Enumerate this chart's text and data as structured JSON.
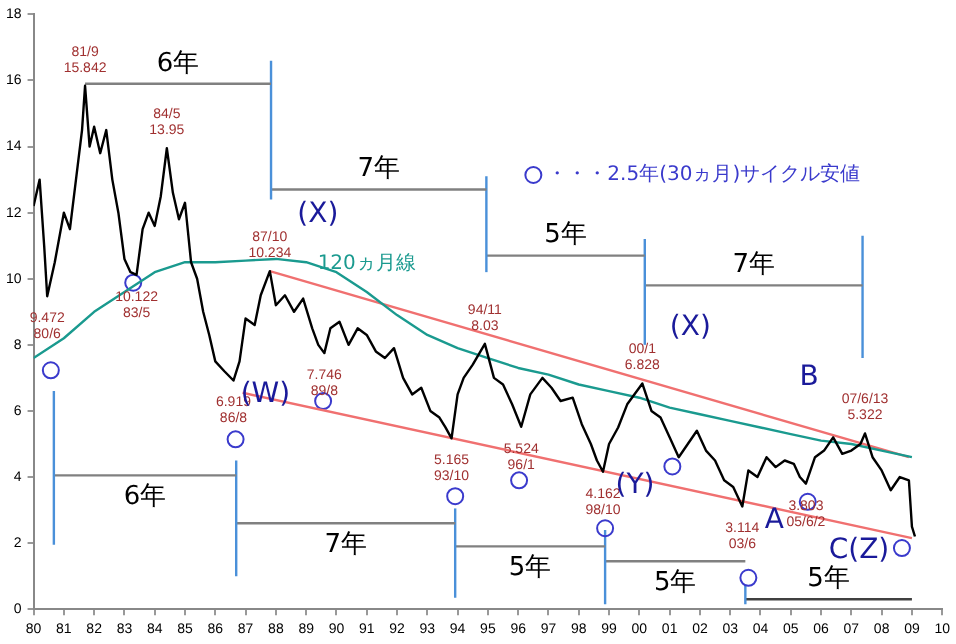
{
  "chart_data": {
    "type": "line",
    "xlim": [
      1980,
      2010
    ],
    "ylim": [
      0,
      18
    ],
    "yticks": [
      0,
      2,
      4,
      6,
      8,
      10,
      12,
      14,
      16,
      18
    ],
    "xticks": [
      {
        "value": 1980,
        "label": "80"
      },
      {
        "value": 1981,
        "label": "81"
      },
      {
        "value": 1982,
        "label": "82"
      },
      {
        "value": 1983,
        "label": "83"
      },
      {
        "value": 1984,
        "label": "84"
      },
      {
        "value": 1985,
        "label": "85"
      },
      {
        "value": 1986,
        "label": "86"
      },
      {
        "value": 1987,
        "label": "87"
      },
      {
        "value": 1988,
        "label": "88"
      },
      {
        "value": 1989,
        "label": "89"
      },
      {
        "value": 1990,
        "label": "90"
      },
      {
        "value": 1991,
        "label": "91"
      },
      {
        "value": 1992,
        "label": "92"
      },
      {
        "value": 1993,
        "label": "93"
      },
      {
        "value": 1994,
        "label": "94"
      },
      {
        "value": 1995,
        "label": "95"
      },
      {
        "value": 1996,
        "label": "96"
      },
      {
        "value": 1997,
        "label": "97"
      },
      {
        "value": 1998,
        "label": "98"
      },
      {
        "value": 1999,
        "label": "99"
      },
      {
        "value": 2000,
        "label": "00"
      },
      {
        "value": 2001,
        "label": "01"
      },
      {
        "value": 2002,
        "label": "02"
      },
      {
        "value": 2003,
        "label": "03"
      },
      {
        "value": 2004,
        "label": "04"
      },
      {
        "value": 2005,
        "label": "05"
      },
      {
        "value": 2006,
        "label": "06"
      },
      {
        "value": 2007,
        "label": "07"
      },
      {
        "value": 2008,
        "label": "08"
      },
      {
        "value": 2009,
        "label": "09"
      },
      {
        "value": 2010,
        "label": "10"
      }
    ],
    "grid": false,
    "legend": "top right",
    "line_style": "solid",
    "marker": "none",
    "series": [
      {
        "color": "#000000",
        "x": [
          1980.0,
          1980.2,
          1980.35,
          1980.45,
          1980.7,
          1981.0,
          1981.2,
          1981.4,
          1981.6,
          1981.7,
          1981.85,
          1982.0,
          1982.2,
          1982.4,
          1982.6,
          1982.8,
          1983.0,
          1983.2,
          1983.4,
          1983.6,
          1983.8,
          1984.0,
          1984.2,
          1984.4,
          1984.6,
          1984.8,
          1985.0,
          1985.2,
          1985.4,
          1985.6,
          1985.8,
          1986.0,
          1986.3,
          1986.6,
          1986.8,
          1987.0,
          1987.3,
          1987.5,
          1987.8,
          1988.0,
          1988.3,
          1988.6,
          1988.9,
          1989.2,
          1989.4,
          1989.6,
          1989.8,
          1990.1,
          1990.4,
          1990.7,
          1991.0,
          1991.3,
          1991.6,
          1991.9,
          1992.2,
          1992.5,
          1992.8,
          1993.1,
          1993.4,
          1993.6,
          1993.8,
          1994.0,
          1994.2,
          1994.5,
          1994.9,
          1995.2,
          1995.5,
          1995.8,
          1996.1,
          1996.4,
          1996.8,
          1997.1,
          1997.4,
          1997.8,
          1998.1,
          1998.4,
          1998.6,
          1998.8,
          1999.0,
          1999.3,
          1999.6,
          2000.1,
          2000.4,
          2000.7,
          2001.0,
          2001.3,
          2001.6,
          2001.9,
          2002.2,
          2002.5,
          2002.8,
          2003.1,
          2003.4,
          2003.6,
          2003.9,
          2004.2,
          2004.5,
          2004.8,
          2005.1,
          2005.3,
          2005.5,
          2005.8,
          2006.1,
          2006.4,
          2006.7,
          2007.0,
          2007.3,
          2007.45,
          2007.7,
          2008.0,
          2008.3,
          2008.6,
          2008.9,
          2009.0,
          2009.1
        ],
        "values": [
          12.2,
          13.0,
          11.0,
          9.47,
          10.5,
          12.0,
          11.5,
          13.0,
          14.5,
          15.84,
          14.0,
          14.6,
          13.8,
          14.5,
          13.0,
          12.0,
          10.6,
          10.2,
          10.12,
          11.5,
          12.0,
          11.6,
          12.5,
          13.95,
          12.6,
          11.8,
          12.3,
          10.5,
          10.0,
          9.0,
          8.3,
          7.5,
          7.2,
          6.92,
          7.5,
          8.8,
          8.6,
          9.5,
          10.23,
          9.2,
          9.5,
          9.0,
          9.4,
          8.5,
          8.0,
          7.75,
          8.5,
          8.7,
          8.0,
          8.5,
          8.3,
          7.8,
          7.6,
          7.9,
          7.0,
          6.5,
          6.7,
          6.0,
          5.8,
          5.5,
          5.17,
          6.5,
          7.0,
          7.4,
          8.03,
          7.0,
          6.8,
          6.2,
          5.52,
          6.5,
          7.0,
          6.7,
          6.3,
          6.4,
          5.6,
          5.0,
          4.5,
          4.16,
          5.0,
          5.5,
          6.2,
          6.83,
          6.0,
          5.8,
          5.2,
          4.6,
          5.0,
          5.4,
          4.8,
          4.5,
          3.9,
          3.7,
          3.11,
          4.2,
          4.0,
          4.6,
          4.3,
          4.5,
          4.4,
          4.0,
          3.8,
          4.6,
          4.8,
          5.2,
          4.7,
          4.8,
          5.0,
          5.32,
          4.6,
          4.2,
          3.6,
          4.0,
          3.9,
          2.5,
          2.2
        ]
      },
      {
        "color": "#1a9a8f",
        "x": [
          1980,
          1981,
          1982,
          1983,
          1984,
          1985,
          1986,
          1987,
          1988,
          1989,
          1990,
          1991,
          1992,
          1993,
          1994,
          1995,
          1996,
          1997,
          1998,
          1999,
          2000,
          2001,
          2002,
          2003,
          2004,
          2005,
          2006,
          2007,
          2008,
          2009
        ],
        "values": [
          7.6,
          8.2,
          9.0,
          9.6,
          10.2,
          10.5,
          10.5,
          10.55,
          10.6,
          10.5,
          10.2,
          9.6,
          8.9,
          8.3,
          7.9,
          7.6,
          7.3,
          7.1,
          6.8,
          6.6,
          6.4,
          6.1,
          5.9,
          5.7,
          5.5,
          5.3,
          5.1,
          5.0,
          4.8,
          4.6
        ]
      },
      {
        "color": "#f07070",
        "x": [
          1987.8,
          2008.9
        ],
        "values": [
          10.23,
          4.6
        ]
      },
      {
        "color": "#f07070",
        "x": [
          1986.9,
          2009.0
        ],
        "values": [
          6.55,
          2.15
        ]
      },
      {
        "type": "scatter",
        "name": "・・・2.5年(30ヵ月)サイクル安値",
        "color": "#3a3acc",
        "marker": "circle",
        "x": [
          1980.57,
          1983.29,
          1986.67,
          1989.56,
          1993.92,
          1996.03,
          1998.87,
          2001.09,
          2003.6,
          2005.56,
          2008.67
        ],
        "values": [
          7.23,
          9.88,
          5.14,
          6.3,
          3.42,
          3.9,
          2.45,
          4.32,
          0.95,
          3.25,
          1.85
        ]
      },
      {
        "color": "#808080",
        "x": [
          1981.7,
          1987.84
        ],
        "values": [
          15.9,
          15.9
        ]
      },
      {
        "color": "#4a90d9",
        "x": [
          1987.84,
          1987.84
        ],
        "values": [
          12.4,
          16.6
        ]
      },
      {
        "color": "#808080",
        "x": [
          1987.84,
          1994.95
        ],
        "values": [
          12.7,
          12.7
        ]
      },
      {
        "color": "#4a90d9",
        "x": [
          1994.95,
          1994.95
        ],
        "values": [
          10.2,
          13.1
        ]
      },
      {
        "color": "#808080",
        "x": [
          1994.95,
          2000.18
        ],
        "values": [
          10.7,
          10.7
        ]
      },
      {
        "color": "#4a90d9",
        "x": [
          2000.18,
          2000.18
        ],
        "values": [
          8.0,
          11.2
        ]
      },
      {
        "color": "#808080",
        "x": [
          2000.18,
          2007.37
        ],
        "values": [
          9.8,
          9.8
        ]
      },
      {
        "color": "#4a90d9",
        "x": [
          2007.37,
          2007.37
        ],
        "values": [
          7.6,
          11.3
        ]
      },
      {
        "color": "#4a90d9",
        "x": [
          1980.67,
          1980.67
        ],
        "values": [
          1.95,
          6.6
        ]
      },
      {
        "color": "#808080",
        "x": [
          1980.67,
          1986.69
        ],
        "values": [
          4.05,
          4.05
        ]
      },
      {
        "color": "#4a90d9",
        "x": [
          1986.69,
          1986.69
        ],
        "values": [
          1.0,
          4.5
        ]
      },
      {
        "color": "#808080",
        "x": [
          1986.69,
          1993.92
        ],
        "values": [
          2.6,
          2.6
        ]
      },
      {
        "color": "#4a90d9",
        "x": [
          1993.92,
          1993.92
        ],
        "values": [
          0.35,
          3.05
        ]
      },
      {
        "color": "#808080",
        "x": [
          1993.92,
          1998.87
        ],
        "values": [
          1.9,
          1.9
        ]
      },
      {
        "color": "#4a90d9",
        "x": [
          1998.87,
          1998.87
        ],
        "values": [
          0.15,
          2.4
        ]
      },
      {
        "color": "#808080",
        "x": [
          1998.87,
          2003.5
        ],
        "values": [
          1.45,
          1.45
        ]
      },
      {
        "color": "#4a90d9",
        "x": [
          2003.5,
          2003.5
        ],
        "values": [
          0.15,
          0.75
        ]
      },
      {
        "color": "#404040",
        "x": [
          2003.5,
          2009.0
        ],
        "values": [
          0.3,
          0.3
        ]
      }
    ],
    "annotations": [
      {
        "text": "81/9\n15.842",
        "x": 1981.7,
        "y": 15.84
      },
      {
        "text": "84/5\n13.95",
        "x": 1984.4,
        "y": 13.95
      },
      {
        "text": "9.472\n80/6",
        "x": 1980.45,
        "y": 9.47
      },
      {
        "text": "10.122\n83/5",
        "x": 1983.4,
        "y": 10.12
      },
      {
        "text": "87/10\n10.234",
        "x": 1987.8,
        "y": 10.23
      },
      {
        "text": "6.919\n86/8",
        "x": 1986.6,
        "y": 6.92
      },
      {
        "text": "7.746\n89/8",
        "x": 1989.6,
        "y": 7.75
      },
      {
        "text": "5.165\n93/10",
        "x": 1993.8,
        "y": 5.17
      },
      {
        "text": "94/11\n8.03",
        "x": 1994.9,
        "y": 8.03
      },
      {
        "text": "5.524\n96/1",
        "x": 1996.1,
        "y": 5.52
      },
      {
        "text": "4.162\n98/10",
        "x": 1998.8,
        "y": 4.16
      },
      {
        "text": "00/1\n6.828",
        "x": 2000.1,
        "y": 6.83
      },
      {
        "text": "3.114\n03/6",
        "x": 2003.4,
        "y": 3.11
      },
      {
        "text": "3.803\n05/6/2",
        "x": 2005.5,
        "y": 3.8
      },
      {
        "text": "07/6/13\n5.322",
        "x": 2007.45,
        "y": 5.32
      },
      {
        "text": "(X)",
        "x": 1987.8,
        "y": 10.23
      },
      {
        "text": "(W)",
        "x": 1986.6,
        "y": 6.92
      },
      {
        "text": "(X)",
        "x": 2000.1,
        "y": 6.83
      },
      {
        "text": "(Y)",
        "x": 1998.8,
        "y": 4.16
      },
      {
        "text": "A",
        "x": 2003.4,
        "y": 3.11
      },
      {
        "text": "B",
        "x": 2007.45,
        "y": 5.32
      },
      {
        "text": "C(Z)",
        "x": 2009.1,
        "y": 2.2
      },
      {
        "text": "120ヵ月線",
        "x": 1991,
        "y": 9.6
      },
      {
        "text": "6年",
        "x": 1984.77,
        "y": 15.9
      },
      {
        "text": "7年",
        "x": 1991.395,
        "y": 12.7
      },
      {
        "text": "5年",
        "x": 1997.565,
        "y": 10.7
      },
      {
        "text": "7年",
        "x": 2003.775,
        "y": 9.8
      },
      {
        "text": "6年",
        "x": 1983.68,
        "y": 4.05
      },
      {
        "text": "7年",
        "x": 1990.305,
        "y": 2.6
      },
      {
        "text": "5年",
        "x": 1996.395,
        "y": 1.9
      },
      {
        "text": "5年",
        "x": 2001.185,
        "y": 1.45
      },
      {
        "text": "5年",
        "x": 2006.25,
        "y": 0.3
      }
    ]
  }
}
